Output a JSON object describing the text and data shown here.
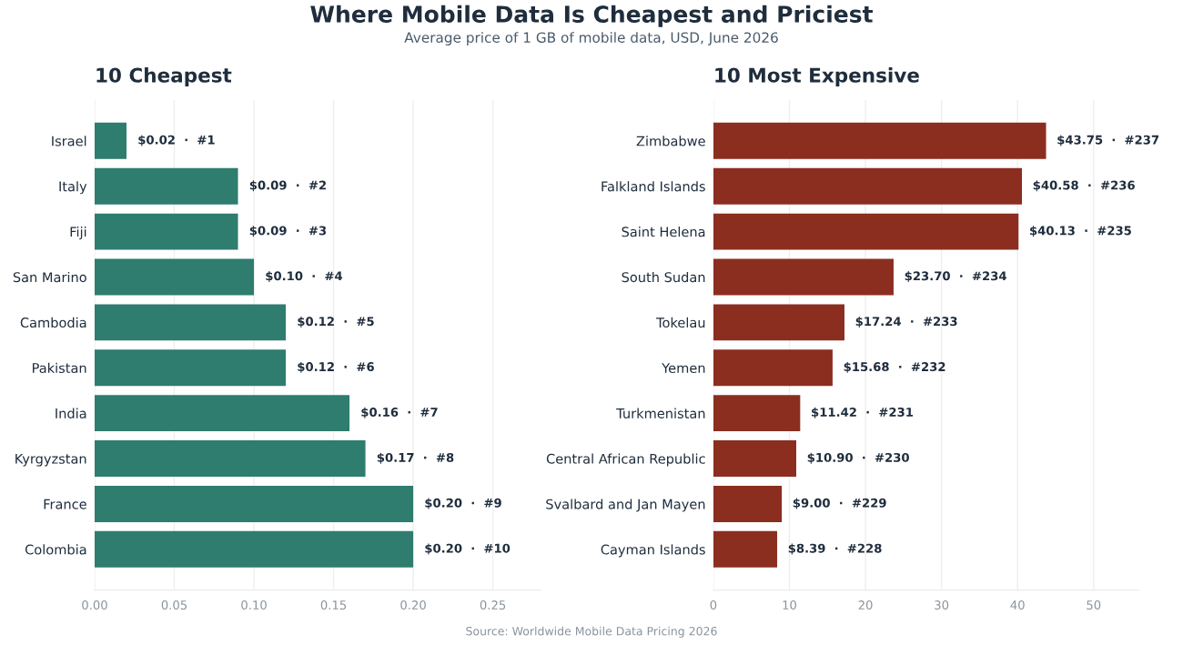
{
  "chart_data": [
    {
      "type": "bar",
      "orientation": "horizontal",
      "title": "10 Cheapest",
      "annotations": [
        "Where Mobile Data Is Cheapest and Priciest",
        "Average price of 1 GB of mobile data, USD, June 2026",
        "Source: Worldwide Mobile Data Pricing 2026"
      ],
      "categories": [
        "Israel",
        "Italy",
        "Fiji",
        "San Marino",
        "Cambodia",
        "Pakistan",
        "India",
        "Kyrgyzstan",
        "France",
        "Colombia"
      ],
      "values": [
        0.02,
        0.09,
        0.09,
        0.1,
        0.12,
        0.12,
        0.16,
        0.17,
        0.2,
        0.2
      ],
      "value_labels": [
        "$0.02  ·  #1",
        "$0.09  ·  #2",
        "$0.09  ·  #3",
        "$0.10  ·  #4",
        "$0.12  ·  #5",
        "$0.12  ·  #6",
        "$0.16  ·  #7",
        "$0.17  ·  #8",
        "$0.20  ·  #9",
        "$0.20  ·  #10"
      ],
      "color": "#2e7d6f",
      "xlim": [
        0,
        0.28
      ],
      "xticks": [
        {
          "value": 0,
          "label": "0.00"
        },
        {
          "value": 0.05,
          "label": "0.05"
        },
        {
          "value": 0.1,
          "label": "0.10"
        },
        {
          "value": 0.15,
          "label": "0.15"
        },
        {
          "value": 0.2,
          "label": "0.20"
        },
        {
          "value": 0.25,
          "label": "0.25"
        }
      ],
      "grid": "x"
    },
    {
      "type": "bar",
      "orientation": "horizontal",
      "title": "10 Most Expensive",
      "categories": [
        "Zimbabwe",
        "Falkland Islands",
        "Saint Helena",
        "South Sudan",
        "Tokelau",
        "Yemen",
        "Turkmenistan",
        "Central African Republic",
        "Svalbard and Jan Mayen",
        "Cayman Islands"
      ],
      "values": [
        43.75,
        40.58,
        40.13,
        23.7,
        17.24,
        15.68,
        11.42,
        10.9,
        9.0,
        8.39
      ],
      "value_labels": [
        "$43.75  ·  #237",
        "$40.58  ·  #236",
        "$40.13  ·  #235",
        "$23.70  ·  #234",
        "$17.24  ·  #233",
        "$15.68  ·  #232",
        "$11.42  ·  #231",
        "$10.90  ·  #230",
        "$9.00  ·  #229",
        "$8.39  ·  #228"
      ],
      "color": "#8b2e20",
      "xlim": [
        0,
        56
      ],
      "xticks": [
        0,
        10,
        20,
        30,
        40,
        50
      ],
      "grid": "x"
    }
  ]
}
